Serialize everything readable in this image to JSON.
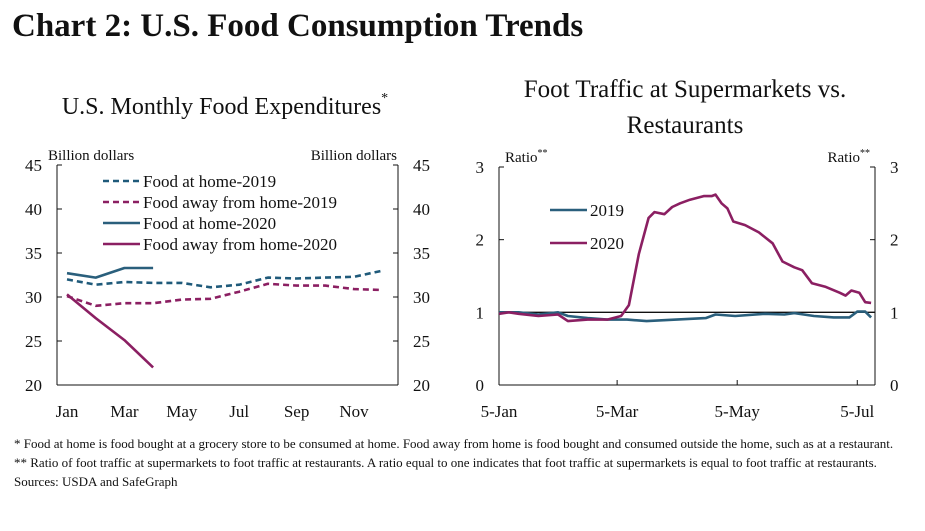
{
  "title": "Chart 2: U.S. Food Consumption Trends",
  "chart_data": [
    {
      "type": "line",
      "title": "U.S. Monthly Food Expenditures",
      "title_note": "*",
      "y_label": "Billion dollars",
      "y2_label": "Billion dollars",
      "categories": [
        "Jan",
        null,
        "Mar",
        null,
        "May",
        null,
        "Jul",
        null,
        "Sep",
        null,
        "Nov",
        null
      ],
      "series": [
        {
          "name": "Food at home-2019",
          "color": "#1f5a7a",
          "dash": true,
          "values": [
            32.0,
            31.4,
            31.7,
            31.6,
            31.6,
            31.1,
            31.4,
            32.2,
            32.1,
            32.2,
            32.3,
            33.0
          ]
        },
        {
          "name": "Food away from home-2019",
          "color": "#8b1f62",
          "dash": true,
          "values": [
            30.1,
            29.0,
            29.3,
            29.3,
            29.7,
            29.8,
            30.6,
            31.5,
            31.3,
            31.3,
            30.9,
            30.8
          ]
        },
        {
          "name": "Food at home-2020",
          "color": "#2a5f7c",
          "dash": false,
          "values": [
            32.7,
            32.2,
            33.3,
            33.3,
            null,
            null,
            null,
            null,
            null,
            null,
            null,
            null
          ]
        },
        {
          "name": "Food away from home-2020",
          "color": "#8b1f62",
          "dash": false,
          "values": [
            30.3,
            27.6,
            25.1,
            22.0,
            null,
            null,
            null,
            null,
            null,
            null,
            null,
            null
          ]
        }
      ],
      "ylim": [
        20,
        45
      ],
      "yticks": [
        20,
        25,
        30,
        35,
        40,
        45
      ],
      "y2lim": [
        20,
        45
      ],
      "y2ticks": [
        20,
        25,
        30,
        35,
        40,
        45
      ]
    },
    {
      "type": "line",
      "title": "Foot Traffic at Supermarkets vs. Restaurants",
      "y_label": "Ratio",
      "y_label_note": "**",
      "y2_label": "Ratio",
      "y2_label_note": "**",
      "series": [
        {
          "name": "2019",
          "color": "#2a5f7c",
          "dash": false,
          "x": [
            0,
            10,
            20,
            30,
            35,
            45,
            55,
            65,
            75,
            90,
            105,
            110,
            120,
            135,
            145,
            150,
            160,
            170,
            178,
            182,
            186,
            189
          ],
          "values": [
            1.0,
            1.0,
            0.97,
            1.0,
            0.95,
            0.92,
            0.9,
            0.9,
            0.88,
            0.9,
            0.92,
            0.97,
            0.95,
            0.98,
            0.97,
            0.99,
            0.95,
            0.93,
            0.93,
            1.01,
            1.01,
            0.93
          ]
        },
        {
          "name": "2020",
          "color": "#8b1f62",
          "dash": false,
          "x": [
            0,
            5,
            10,
            20,
            30,
            35,
            45,
            55,
            62,
            66,
            71,
            76,
            79,
            84,
            88,
            92,
            97,
            104,
            108,
            110,
            113,
            116,
            119,
            125,
            132,
            139,
            144,
            150,
            154,
            159,
            166,
            173,
            176,
            179,
            183,
            186,
            189
          ],
          "values": [
            0.98,
            1.0,
            0.98,
            0.95,
            0.97,
            0.88,
            0.9,
            0.9,
            0.95,
            1.1,
            1.8,
            2.3,
            2.38,
            2.35,
            2.45,
            2.5,
            2.55,
            2.6,
            2.6,
            2.62,
            2.5,
            2.43,
            2.25,
            2.2,
            2.1,
            1.95,
            1.7,
            1.62,
            1.58,
            1.4,
            1.35,
            1.27,
            1.23,
            1.3,
            1.27,
            1.14,
            1.13
          ]
        }
      ],
      "reference_line": 1,
      "xlim": [
        0,
        191
      ],
      "xticks": [
        {
          "value": 0,
          "label": "5-Jan"
        },
        {
          "value": 60,
          "label": "5-Mar"
        },
        {
          "value": 121,
          "label": "5-May"
        },
        {
          "value": 182,
          "label": "5-Jul"
        }
      ],
      "ylim": [
        0,
        3
      ],
      "yticks": [
        0,
        1,
        2,
        3
      ],
      "y2lim": [
        0,
        3
      ],
      "y2ticks": [
        0,
        1,
        2,
        3
      ]
    }
  ],
  "notes": [
    "* Food at home is food bought at a grocery store to be consumed at home. Food away from home is food bought and consumed outside the home, such as at a restaurant.",
    "** Ratio of foot traffic at supermarkets to foot traffic at restaurants. A ratio equal to one indicates that foot traffic at supermarkets is equal to foot traffic at restaurants."
  ],
  "source": "Sources: USDA and SafeGraph"
}
